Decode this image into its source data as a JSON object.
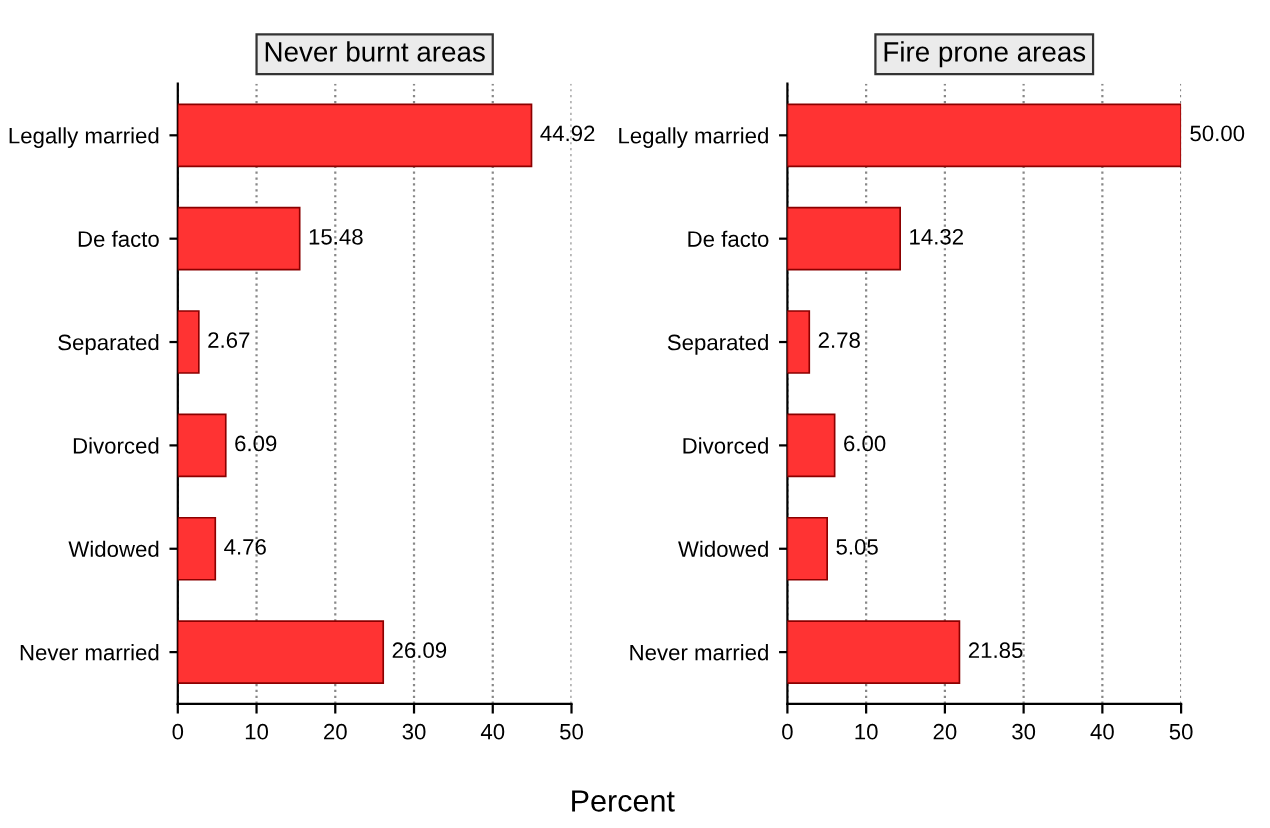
{
  "chart_data": [
    {
      "type": "bar",
      "orientation": "horizontal",
      "title": "Never burnt areas",
      "xlabel": "Percent",
      "categories": [
        "Legally married",
        "De facto",
        "Separated",
        "Divorced",
        "Widowed",
        "Never married"
      ],
      "values": [
        44.92,
        15.48,
        2.67,
        6.09,
        4.76,
        26.09
      ],
      "value_labels": [
        "44.92",
        "15.48",
        "2.67",
        "6.09",
        "4.76",
        "26.09"
      ],
      "color": "#ff3333",
      "xlim": [
        0,
        50
      ],
      "xticks": [
        0,
        10,
        20,
        30,
        40,
        50
      ],
      "grid": "x"
    },
    {
      "type": "bar",
      "orientation": "horizontal",
      "title": "Fire prone areas",
      "categories": [
        "Legally married",
        "De facto",
        "Separated",
        "Divorced",
        "Widowed",
        "Never married"
      ],
      "values": [
        50.0,
        14.32,
        2.78,
        6.0,
        5.05,
        21.85
      ],
      "value_labels": [
        "50.00",
        "14.32",
        "2.78",
        "6.00",
        "5.05",
        "21.85"
      ],
      "color": "#ff3333",
      "xlim": [
        0,
        50
      ],
      "xticks": [
        0,
        10,
        20,
        30,
        40,
        50
      ],
      "grid": "x"
    }
  ]
}
